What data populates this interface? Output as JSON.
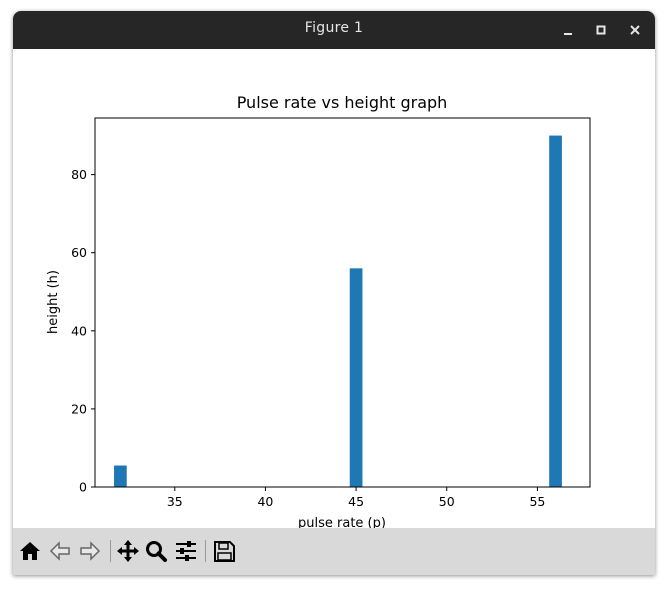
{
  "window": {
    "title": "Figure 1",
    "controls": [
      "minimize-icon",
      "maximize-icon",
      "close-icon"
    ]
  },
  "toolbar": {
    "tools": [
      "home-icon",
      "back-arrow-icon",
      "forward-arrow-icon",
      "pan-icon",
      "zoom-icon",
      "configure-subplots-icon",
      "save-icon"
    ]
  },
  "colors": {
    "bar": "#1f77b4",
    "titlebar": "#262626",
    "toolbar": "#d9d9d9"
  },
  "chart_data": {
    "type": "bar",
    "title": "Pulse rate vs height graph",
    "xlabel": "pulse rate (p)",
    "ylabel": "height (h)",
    "x": [
      32,
      45,
      56
    ],
    "values": [
      5.5,
      56,
      90
    ],
    "bar_width": 0.7,
    "xlim": [
      30.6,
      57.9
    ],
    "ylim": [
      0,
      94.5
    ],
    "xticks": [
      35,
      40,
      45,
      50,
      55
    ],
    "yticks": [
      0,
      20,
      40,
      60,
      80
    ],
    "grid": false,
    "legend": "none"
  }
}
